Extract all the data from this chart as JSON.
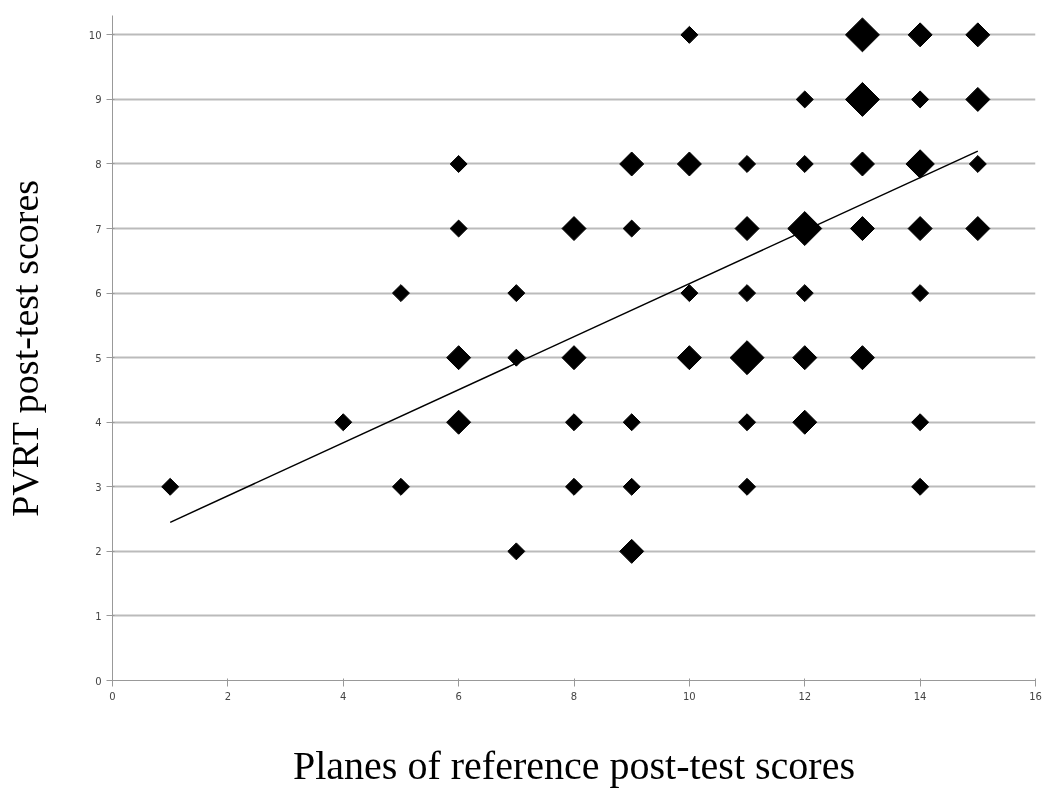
{
  "chart_data": {
    "type": "bubble",
    "xlabel": "Planes of reference post-test scores",
    "ylabel": "PVRT post-test scores",
    "xlim": [
      0,
      16
    ],
    "xticks": [
      0,
      2,
      4,
      6,
      8,
      10,
      12,
      14,
      16
    ],
    "ylim": [
      0,
      10.3
    ],
    "yticks": [
      0,
      1,
      2,
      3,
      4,
      5,
      6,
      7,
      8,
      9,
      10
    ],
    "grid": "y",
    "legend": false,
    "marker": "diamond",
    "series": [
      {
        "color": "#000000",
        "x": [
          10,
          13,
          14,
          15,
          12,
          13,
          14,
          15,
          6,
          9,
          10,
          11,
          12,
          13,
          14,
          15,
          6,
          8,
          9,
          11,
          12,
          13,
          14,
          15,
          5,
          7,
          10,
          11,
          12,
          14,
          6,
          7,
          8,
          10,
          11,
          12,
          13,
          4,
          6,
          8,
          9,
          11,
          12,
          14,
          1,
          5,
          8,
          9,
          11,
          14,
          7,
          9
        ],
        "values": [
          10,
          10,
          10,
          10,
          9,
          9,
          9,
          9,
          8,
          8,
          8,
          8,
          8,
          8,
          8,
          8,
          7,
          7,
          7,
          7,
          7,
          7,
          7,
          7,
          6,
          6,
          6,
          6,
          6,
          6,
          5,
          5,
          5,
          5,
          5,
          5,
          5,
          4,
          4,
          4,
          4,
          4,
          4,
          4,
          3,
          3,
          3,
          3,
          3,
          3,
          2,
          2
        ],
        "sizes": [
          0.25,
          1,
          0.5,
          0.5,
          0.25,
          1,
          0.25,
          0.5,
          0.25,
          0.5,
          0.5,
          0.25,
          0.25,
          0.5,
          0.7,
          0.25,
          0.25,
          0.5,
          0.25,
          0.5,
          1,
          0.5,
          0.5,
          0.5,
          0.25,
          0.25,
          0.25,
          0.25,
          0.25,
          0.25,
          0.5,
          0.25,
          0.5,
          0.5,
          1,
          0.5,
          0.5,
          0.25,
          0.5,
          0.25,
          0.25,
          0.25,
          0.5,
          0.25,
          0.25,
          0.25,
          0.25,
          0.25,
          0.25,
          0.25,
          0.25,
          0.5
        ]
      },
      {
        "type": "line",
        "color": "#000000",
        "line_style": "solid",
        "marker": "none",
        "x": [
          1,
          15
        ],
        "values": [
          2.45,
          8.2
        ]
      }
    ]
  }
}
